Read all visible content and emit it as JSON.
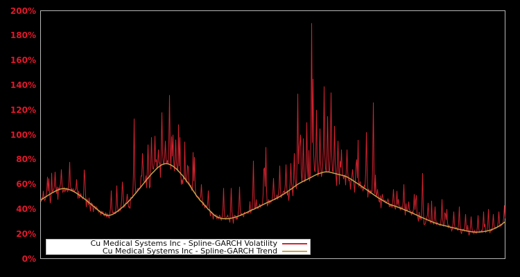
{
  "chart_data": {
    "type": "line",
    "title": "",
    "background": "#000000",
    "border_color": "#b9b9b9",
    "grid": false,
    "legend_position": "bottom-left-inside",
    "y_axis": {
      "range": [
        0,
        200
      ],
      "label_color": "#e3172a",
      "ticks": [
        {
          "label": "0%",
          "value": 0
        },
        {
          "label": "20%",
          "value": 20
        },
        {
          "label": "40%",
          "value": 40
        },
        {
          "label": "60%",
          "value": 60
        },
        {
          "label": "80%",
          "value": 80
        },
        {
          "label": "100%",
          "value": 100
        },
        {
          "label": "120%",
          "value": 120
        },
        {
          "label": "140%",
          "value": 140
        },
        {
          "label": "160%",
          "value": 160
        },
        {
          "label": "180%",
          "value": 180
        },
        {
          "label": "200%",
          "value": 200
        }
      ]
    },
    "series": [
      {
        "name": "Cu Medical Systems Inc - Spline-GARCH Volatility",
        "color": "#d2232f",
        "style": "noisy"
      },
      {
        "name": "Cu Medical Systems Inc - Spline-GARCH Trend",
        "color": "#c8a44a",
        "style": "smooth"
      }
    ],
    "trend_points": [
      {
        "x": 0.0,
        "y": 47
      },
      {
        "x": 0.025,
        "y": 53
      },
      {
        "x": 0.048,
        "y": 56.5
      },
      {
        "x": 0.07,
        "y": 54.5
      },
      {
        "x": 0.092,
        "y": 49
      },
      {
        "x": 0.115,
        "y": 42
      },
      {
        "x": 0.134,
        "y": 36.5
      },
      {
        "x": 0.149,
        "y": 35
      },
      {
        "x": 0.167,
        "y": 38.5
      },
      {
        "x": 0.189,
        "y": 46
      },
      {
        "x": 0.212,
        "y": 56
      },
      {
        "x": 0.234,
        "y": 66
      },
      {
        "x": 0.256,
        "y": 74.5
      },
      {
        "x": 0.274,
        "y": 76.5
      },
      {
        "x": 0.294,
        "y": 72
      },
      {
        "x": 0.316,
        "y": 62
      },
      {
        "x": 0.338,
        "y": 50
      },
      {
        "x": 0.361,
        "y": 40
      },
      {
        "x": 0.379,
        "y": 34
      },
      {
        "x": 0.398,
        "y": 32.2
      },
      {
        "x": 0.42,
        "y": 33.5
      },
      {
        "x": 0.443,
        "y": 37
      },
      {
        "x": 0.465,
        "y": 41
      },
      {
        "x": 0.487,
        "y": 45
      },
      {
        "x": 0.51,
        "y": 49
      },
      {
        "x": 0.532,
        "y": 54
      },
      {
        "x": 0.554,
        "y": 60
      },
      {
        "x": 0.577,
        "y": 64.5
      },
      {
        "x": 0.599,
        "y": 68.5
      },
      {
        "x": 0.617,
        "y": 70
      },
      {
        "x": 0.636,
        "y": 68.5
      },
      {
        "x": 0.659,
        "y": 66
      },
      {
        "x": 0.681,
        "y": 61
      },
      {
        "x": 0.703,
        "y": 55.5
      },
      {
        "x": 0.726,
        "y": 49.5
      },
      {
        "x": 0.748,
        "y": 44.5
      },
      {
        "x": 0.77,
        "y": 41.5
      },
      {
        "x": 0.793,
        "y": 38
      },
      {
        "x": 0.823,
        "y": 33
      },
      {
        "x": 0.852,
        "y": 28.5
      },
      {
        "x": 0.882,
        "y": 25.5
      },
      {
        "x": 0.909,
        "y": 23
      },
      {
        "x": 0.934,
        "y": 21.5
      },
      {
        "x": 0.957,
        "y": 22
      },
      {
        "x": 0.979,
        "y": 24.5
      },
      {
        "x": 1.0,
        "y": 29.5
      }
    ],
    "spikes": [
      {
        "x": 0.0149,
        "y": 66
      },
      {
        "x": 0.0313,
        "y": 70
      },
      {
        "x": 0.0447,
        "y": 72
      },
      {
        "x": 0.0626,
        "y": 78
      },
      {
        "x": 0.0775,
        "y": 64
      },
      {
        "x": 0.0954,
        "y": 65
      },
      {
        "x": 0.152,
        "y": 55
      },
      {
        "x": 0.1639,
        "y": 59
      },
      {
        "x": 0.1759,
        "y": 62
      },
      {
        "x": 0.2012,
        "y": 113
      },
      {
        "x": 0.2191,
        "y": 85
      },
      {
        "x": 0.231,
        "y": 92
      },
      {
        "x": 0.2385,
        "y": 98
      },
      {
        "x": 0.2459,
        "y": 99
      },
      {
        "x": 0.2534,
        "y": 88
      },
      {
        "x": 0.2608,
        "y": 118
      },
      {
        "x": 0.2683,
        "y": 95
      },
      {
        "x": 0.2772,
        "y": 132
      },
      {
        "x": 0.2847,
        "y": 100
      },
      {
        "x": 0.2906,
        "y": 96
      },
      {
        "x": 0.2996,
        "y": 85
      },
      {
        "x": 0.316,
        "y": 75
      },
      {
        "x": 0.3309,
        "y": 82
      },
      {
        "x": 0.3458,
        "y": 60
      },
      {
        "x": 0.3607,
        "y": 55
      },
      {
        "x": 0.3935,
        "y": 57
      },
      {
        "x": 0.4099,
        "y": 57
      },
      {
        "x": 0.4277,
        "y": 58
      },
      {
        "x": 0.4575,
        "y": 79
      },
      {
        "x": 0.4799,
        "y": 72
      },
      {
        "x": 0.4844,
        "y": 90
      },
      {
        "x": 0.5022,
        "y": 65
      },
      {
        "x": 0.5156,
        "y": 75
      },
      {
        "x": 0.5291,
        "y": 76
      },
      {
        "x": 0.5395,
        "y": 77
      },
      {
        "x": 0.5469,
        "y": 85
      },
      {
        "x": 0.5544,
        "y": 133
      },
      {
        "x": 0.5604,
        "y": 100
      },
      {
        "x": 0.5663,
        "y": 97
      },
      {
        "x": 0.5738,
        "y": 110
      },
      {
        "x": 0.5842,
        "y": 190
      },
      {
        "x": 0.5872,
        "y": 145
      },
      {
        "x": 0.5946,
        "y": 120
      },
      {
        "x": 0.6021,
        "y": 105
      },
      {
        "x": 0.611,
        "y": 139
      },
      {
        "x": 0.6185,
        "y": 115
      },
      {
        "x": 0.6259,
        "y": 134
      },
      {
        "x": 0.6334,
        "y": 107
      },
      {
        "x": 0.6408,
        "y": 95
      },
      {
        "x": 0.6483,
        "y": 88
      },
      {
        "x": 0.6602,
        "y": 88
      },
      {
        "x": 0.6722,
        "y": 72
      },
      {
        "x": 0.6811,
        "y": 80
      },
      {
        "x": 0.7019,
        "y": 102
      },
      {
        "x": 0.7168,
        "y": 126
      },
      {
        "x": 0.7258,
        "y": 56
      },
      {
        "x": 0.7362,
        "y": 52
      },
      {
        "x": 0.7481,
        "y": 48
      },
      {
        "x": 0.7601,
        "y": 56
      },
      {
        "x": 0.7705,
        "y": 48
      },
      {
        "x": 0.7824,
        "y": 60
      },
      {
        "x": 0.7929,
        "y": 46
      },
      {
        "x": 0.8048,
        "y": 52
      },
      {
        "x": 0.8227,
        "y": 69
      },
      {
        "x": 0.8346,
        "y": 45
      },
      {
        "x": 0.8495,
        "y": 42
      },
      {
        "x": 0.8644,
        "y": 48
      },
      {
        "x": 0.8748,
        "y": 40
      },
      {
        "x": 0.8897,
        "y": 38
      },
      {
        "x": 0.9016,
        "y": 42
      },
      {
        "x": 0.9151,
        "y": 36
      },
      {
        "x": 0.927,
        "y": 34
      },
      {
        "x": 0.9419,
        "y": 35
      },
      {
        "x": 0.9538,
        "y": 38
      },
      {
        "x": 0.9642,
        "y": 40
      },
      {
        "x": 0.9747,
        "y": 36
      },
      {
        "x": 0.9866,
        "y": 38
      },
      {
        "x": 0.9985,
        "y": 43
      }
    ],
    "noise": {
      "seed": 42,
      "band": 0.075,
      "spike_prob": 0.09
    }
  }
}
